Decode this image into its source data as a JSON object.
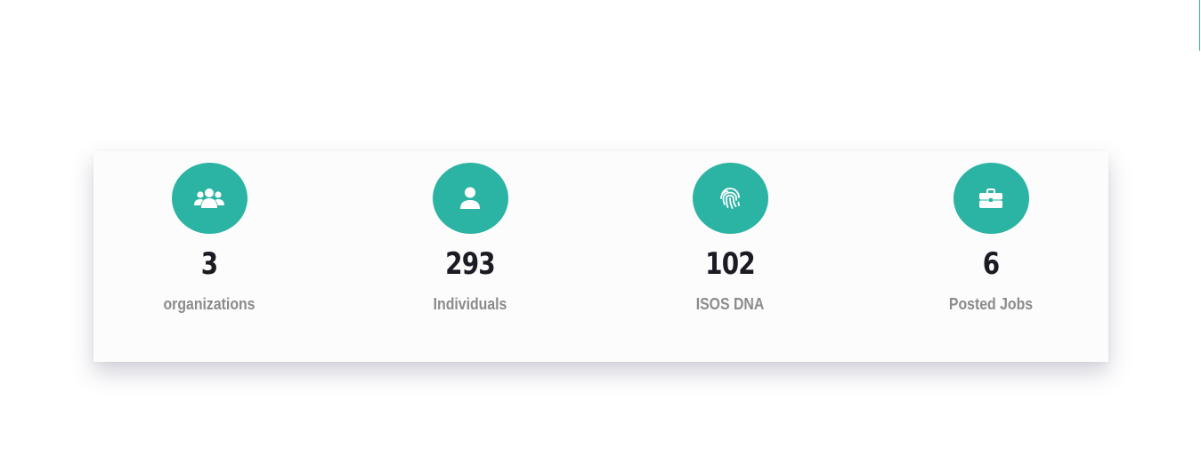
{
  "colors": {
    "accent": "#2bb3a3",
    "value_text": "#1b1b24",
    "label_text": "#8b8b8b",
    "card_bg": "#fcfcfc"
  },
  "stats": [
    {
      "icon": "users-group-icon",
      "value": "3",
      "label": "organizations"
    },
    {
      "icon": "user-icon",
      "value": "293",
      "label": "Individuals"
    },
    {
      "icon": "fingerprint-icon",
      "value": "102",
      "label": "ISOS DNA"
    },
    {
      "icon": "briefcase-icon",
      "value": "6",
      "label": "Posted Jobs"
    }
  ]
}
